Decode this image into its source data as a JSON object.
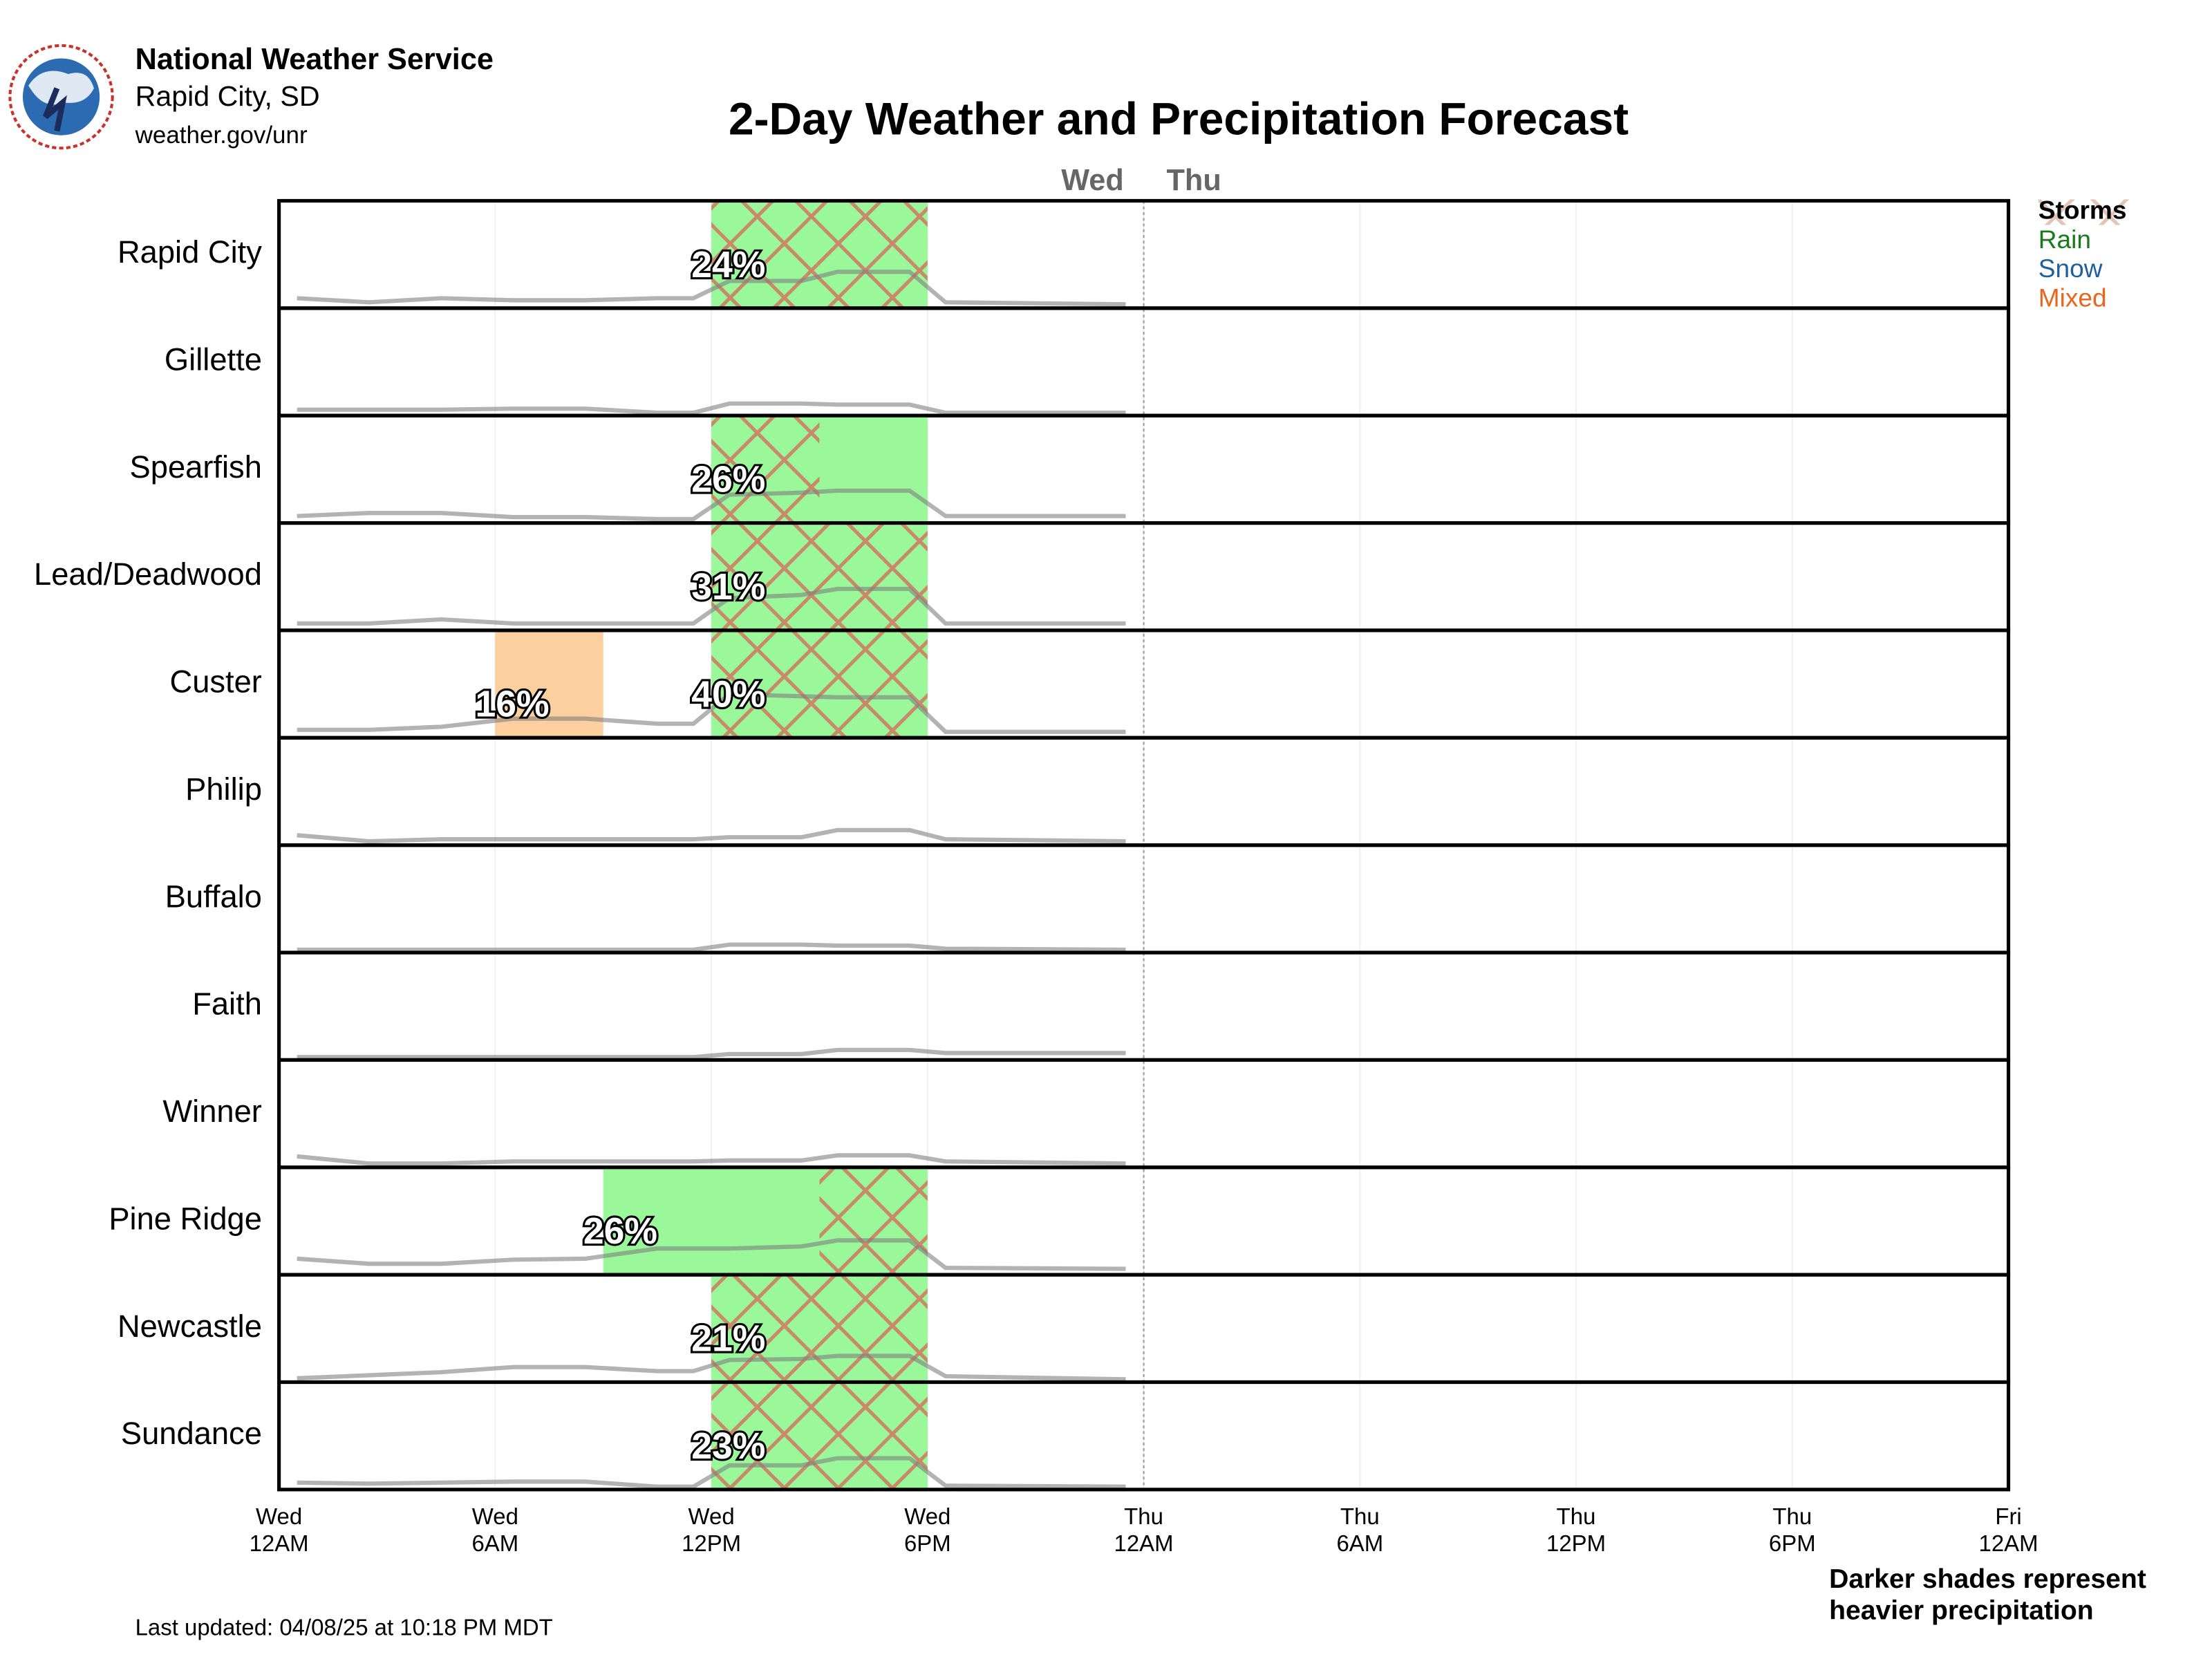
{
  "header": {
    "org": "National Weather Service",
    "office": "Rapid City, SD",
    "url": "weather.gov/unr"
  },
  "chart_data": {
    "type": "forecast-rows",
    "title": "2-Day Weather and Precipitation Forecast",
    "day_labels": [
      "Wed",
      "Thu"
    ],
    "day_divider": 24,
    "xlim": [
      0,
      48
    ],
    "xticks": [
      {
        "value": 0,
        "label": "Wed",
        "sublabel": "12AM"
      },
      {
        "value": 6,
        "label": "Wed",
        "sublabel": "6AM"
      },
      {
        "value": 12,
        "label": "Wed",
        "sublabel": "12PM"
      },
      {
        "value": 18,
        "label": "Wed",
        "sublabel": "6PM"
      },
      {
        "value": 24,
        "label": "Thu",
        "sublabel": "12AM"
      },
      {
        "value": 30,
        "label": "Thu",
        "sublabel": "6AM"
      },
      {
        "value": 36,
        "label": "Thu",
        "sublabel": "12PM"
      },
      {
        "value": 42,
        "label": "Thu",
        "sublabel": "6PM"
      },
      {
        "value": 48,
        "label": "Fri",
        "sublabel": "12AM"
      }
    ],
    "legend": [
      {
        "name": "Storms",
        "color": "#000000"
      },
      {
        "name": "Rain",
        "color": "#1a7a1a"
      },
      {
        "name": "Snow",
        "color": "#1f5fa0"
      },
      {
        "name": "Mixed",
        "color": "#e8661e"
      }
    ],
    "fills": {
      "rain": "#9af79a",
      "mixed": "#fcd09e",
      "storm": "#c98a6a"
    },
    "trace_hours": [
      0.5,
      2.5,
      4.5,
      6.5,
      8.5,
      10.5,
      11.5,
      12.5,
      14.5,
      15.5,
      17.5,
      18.5,
      23.5
    ],
    "rows": [
      {
        "name": "Rapid City",
        "blocks": [
          {
            "type": "rain",
            "start": 12,
            "end": 18,
            "value": 24,
            "value_label": "24%"
          }
        ],
        "storms": [
          {
            "start": 12,
            "end": 18
          }
        ],
        "trace": [
          0.07,
          0.03,
          0.07,
          0.05,
          0.05,
          0.07,
          0.07,
          0.24,
          0.24,
          0.33,
          0.33,
          0.03,
          0.01
        ]
      },
      {
        "name": "Gillette",
        "blocks": [],
        "storms": [],
        "trace": [
          0.03,
          0.03,
          0.03,
          0.04,
          0.04,
          0,
          0,
          0.09,
          0.09,
          0.08,
          0.08,
          0,
          0
        ]
      },
      {
        "name": "Spearfish",
        "blocks": [
          {
            "type": "rain",
            "start": 12,
            "end": 18,
            "value": 26,
            "value_label": "26%"
          }
        ],
        "storms": [
          {
            "start": 12,
            "end": 15
          }
        ],
        "trace": [
          0.04,
          0.07,
          0.07,
          0.03,
          0.03,
          0.01,
          0.01,
          0.25,
          0.27,
          0.29,
          0.29,
          0.04,
          0.04
        ]
      },
      {
        "name": "Lead/Deadwood",
        "blocks": [
          {
            "type": "rain",
            "start": 12,
            "end": 18,
            "value": 31,
            "value_label": "31%"
          }
        ],
        "storms": [
          {
            "start": 12,
            "end": 18
          }
        ],
        "trace": [
          0.04,
          0.04,
          0.08,
          0.04,
          0.04,
          0.04,
          0.04,
          0.29,
          0.32,
          0.38,
          0.38,
          0.04,
          0.04
        ]
      },
      {
        "name": "Custer",
        "blocks": [
          {
            "type": "mixed",
            "start": 6,
            "end": 9,
            "value": 16,
            "value_label": "16%"
          },
          {
            "type": "rain",
            "start": 12,
            "end": 18,
            "value": 40,
            "value_label": "40%"
          }
        ],
        "storms": [
          {
            "start": 12,
            "end": 18
          }
        ],
        "trace": [
          0.05,
          0.05,
          0.08,
          0.16,
          0.16,
          0.11,
          0.11,
          0.4,
          0.38,
          0.37,
          0.37,
          0.03,
          0.03
        ]
      },
      {
        "name": "Philip",
        "blocks": [],
        "storms": [],
        "trace": [
          0.07,
          0.01,
          0.03,
          0.03,
          0.03,
          0.03,
          0.03,
          0.05,
          0.05,
          0.12,
          0.12,
          0.03,
          0.01
        ]
      },
      {
        "name": "Buffalo",
        "blocks": [],
        "storms": [],
        "trace": [
          0,
          0,
          0,
          0,
          0,
          0,
          0,
          0.05,
          0.05,
          0.04,
          0.04,
          0.01,
          0
        ]
      },
      {
        "name": "Faith",
        "blocks": [],
        "storms": [],
        "trace": [
          0,
          0,
          0,
          0,
          0,
          0,
          0,
          0.03,
          0.03,
          0.07,
          0.07,
          0.04,
          0.04
        ]
      },
      {
        "name": "Winner",
        "blocks": [],
        "storms": [],
        "trace": [
          0.08,
          0.01,
          0.01,
          0.03,
          0.03,
          0.03,
          0.03,
          0.04,
          0.04,
          0.09,
          0.09,
          0.03,
          0.01
        ]
      },
      {
        "name": "Pine Ridge",
        "blocks": [
          {
            "type": "rain",
            "start": 9,
            "end": 18,
            "value": 26,
            "value_label": "26%"
          }
        ],
        "storms": [
          {
            "start": 15,
            "end": 18
          }
        ],
        "trace": [
          0.13,
          0.08,
          0.08,
          0.12,
          0.13,
          0.23,
          0.23,
          0.23,
          0.25,
          0.31,
          0.31,
          0.04,
          0.03
        ]
      },
      {
        "name": "Newcastle",
        "blocks": [
          {
            "type": "rain",
            "start": 12,
            "end": 18,
            "value": 21,
            "value_label": "21%"
          }
        ],
        "storms": [
          {
            "start": 12,
            "end": 18
          }
        ],
        "trace": [
          0.01,
          0.04,
          0.07,
          0.12,
          0.12,
          0.08,
          0.08,
          0.19,
          0.2,
          0.23,
          0.23,
          0.03,
          0
        ]
      },
      {
        "name": "Sundance",
        "blocks": [
          {
            "type": "rain",
            "start": 12,
            "end": 18,
            "value": 23,
            "value_label": "23%"
          }
        ],
        "storms": [
          {
            "start": 12,
            "end": 18
          }
        ],
        "trace": [
          0.04,
          0.03,
          0.04,
          0.05,
          0.05,
          0,
          0,
          0.21,
          0.21,
          0.28,
          0.28,
          0.01,
          0
        ]
      }
    ],
    "note": [
      "Darker shades represent",
      "heavier precipitation"
    ],
    "updated": "Last updated: 04/08/25 at 10:18 PM MDT"
  }
}
